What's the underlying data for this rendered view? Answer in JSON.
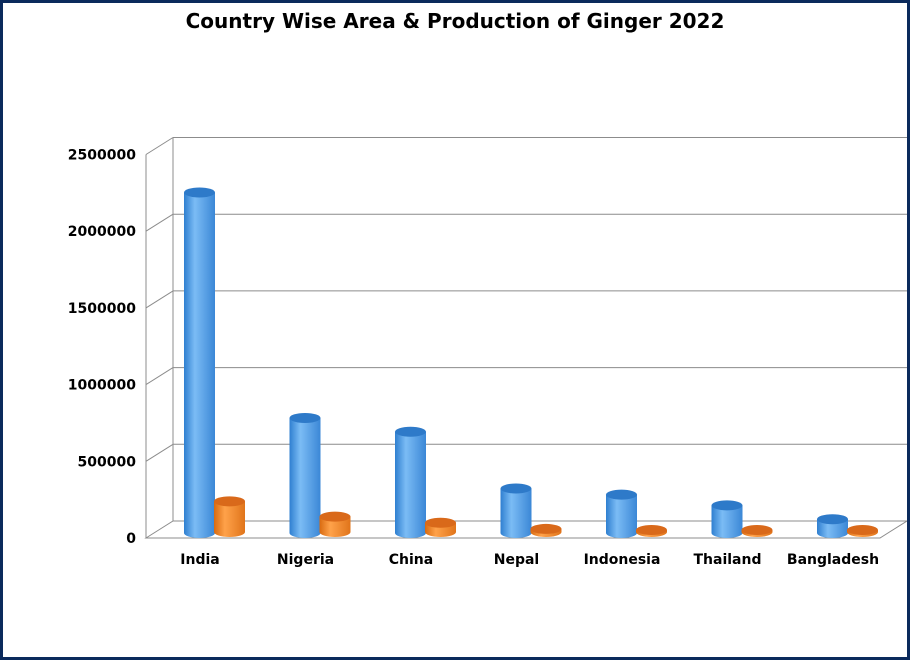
{
  "chart_data": {
    "type": "bar",
    "title": "Country Wise Area & Production of Ginger 2022",
    "categories": [
      "India",
      "Nigeria",
      "China",
      "Nepal",
      "Indonesia",
      "Thailand",
      "Bangladesh"
    ],
    "series": [
      {
        "values": [
          2220000,
          750000,
          660000,
          290000,
          250000,
          180000,
          90000
        ],
        "color": "#4a9be8"
      },
      {
        "values": [
          200000,
          100000,
          60000,
          20000,
          10000,
          10000,
          10000
        ],
        "color": "#f58a25"
      }
    ],
    "ylim": [
      0,
      2500000
    ],
    "yticks": [
      "0",
      "500000",
      "1000000",
      "1500000",
      "2000000",
      "2500000"
    ],
    "grid": true,
    "style": "3d-cylinder"
  }
}
